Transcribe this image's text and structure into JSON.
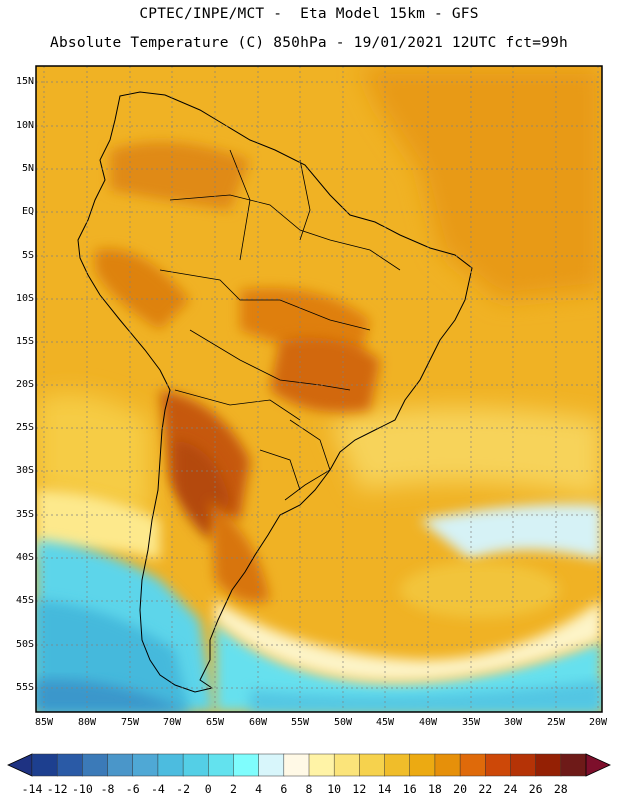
{
  "header": {
    "line1": "CPTEC/INPE/MCT -  Eta Model 15km - GFS",
    "line2": "Absolute Temperature (C) 850hPa - 19/01/2021 12UTC fct=99h"
  },
  "map": {
    "lat_labels": [
      "15N",
      "10N",
      "5N",
      "EQ",
      "5S",
      "10S",
      "15S",
      "20S",
      "25S",
      "30S",
      "35S",
      "40S",
      "45S",
      "50S",
      "55S"
    ],
    "lon_labels": [
      "85W",
      "80W",
      "75W",
      "70W",
      "65W",
      "60W",
      "55W",
      "50W",
      "45W",
      "40W",
      "35W",
      "30W",
      "25W",
      "20W"
    ]
  },
  "colorbar": {
    "labels": [
      "-14",
      "-12",
      "-10",
      "-8",
      "-6",
      "-4",
      "-2",
      "0",
      "2",
      "4",
      "6",
      "8",
      "10",
      "12",
      "14",
      "16",
      "18",
      "20",
      "22",
      "24",
      "26",
      "28"
    ],
    "colors": [
      "#1d3f8f",
      "#2a5aa6",
      "#3b7ab8",
      "#4a96c9",
      "#4fa8d5",
      "#4cbcdf",
      "#54cfe6",
      "#63e2ee",
      "#7ffdfd",
      "#d8f6fb",
      "#fff9e6",
      "#fff3a6",
      "#fbe47a",
      "#f6d24d",
      "#f0bd2a",
      "#ecaa12",
      "#e6900a",
      "#df6a0a",
      "#cd4808",
      "#b53306",
      "#942004",
      "#6e1a18"
    ],
    "left_arrow_color": "#1e3282",
    "right_arrow_color": "#7d0f2b"
  }
}
